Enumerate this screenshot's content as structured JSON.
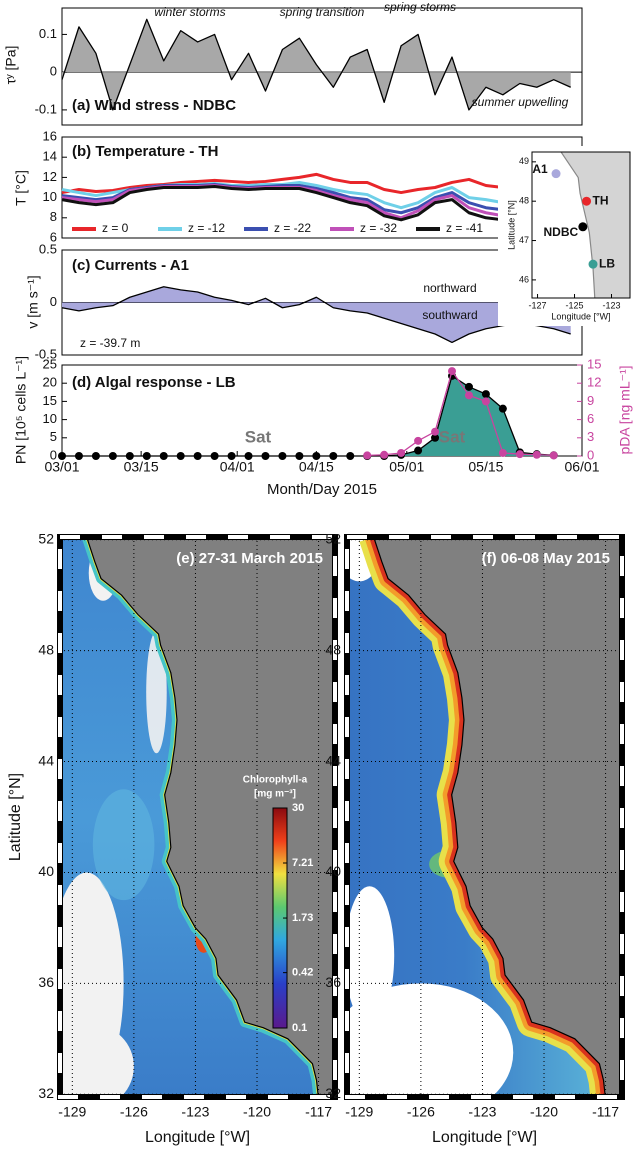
{
  "chart_data": [
    {
      "type": "area",
      "label": "(a) Wind stress - NDBC",
      "ylabel": "τʸ [Pa]",
      "annotations": [
        "winter storms",
        "spring transition",
        "spring storms",
        "summer upwelling"
      ],
      "x": [
        "2015-03-01",
        "2015-03-04",
        "2015-03-07",
        "2015-03-10",
        "2015-03-13",
        "2015-03-16",
        "2015-03-19",
        "2015-03-22",
        "2015-03-25",
        "2015-03-28",
        "2015-03-31",
        "2015-04-03",
        "2015-04-06",
        "2015-04-09",
        "2015-04-12",
        "2015-04-15",
        "2015-04-18",
        "2015-04-21",
        "2015-04-24",
        "2015-04-27",
        "2015-04-30",
        "2015-05-03",
        "2015-05-06",
        "2015-05-09",
        "2015-05-12",
        "2015-05-15",
        "2015-05-18",
        "2015-05-21",
        "2015-05-24",
        "2015-05-27",
        "2015-05-30"
      ],
      "xlim": [
        "2015-03-01",
        "2015-06-01"
      ],
      "ylim": [
        -0.14,
        0.17
      ],
      "yticks": [
        -0.1,
        0,
        0.1
      ],
      "series": [
        {
          "color": "#000000",
          "fill": "#a8a8a8",
          "values": [
            -0.02,
            0.12,
            0.05,
            -0.1,
            0.02,
            0.14,
            0.03,
            0.11,
            0.08,
            0.1,
            -0.02,
            0.05,
            -0.05,
            0.06,
            0.09,
            0.02,
            -0.04,
            0.04,
            0.06,
            -0.08,
            0.07,
            0.1,
            -0.06,
            0.04,
            -0.1,
            -0.04,
            -0.06,
            -0.03,
            -0.04,
            -0.02,
            -0.04
          ]
        }
      ]
    },
    {
      "type": "line",
      "label": "(b) Temperature - TH",
      "ylabel": "T [°C]",
      "legend": "bottom",
      "x": [
        "2015-03-01",
        "2015-03-04",
        "2015-03-07",
        "2015-03-10",
        "2015-03-13",
        "2015-03-16",
        "2015-03-19",
        "2015-03-22",
        "2015-03-25",
        "2015-03-28",
        "2015-03-31",
        "2015-04-03",
        "2015-04-06",
        "2015-04-09",
        "2015-04-12",
        "2015-04-15",
        "2015-04-18",
        "2015-04-21",
        "2015-04-24",
        "2015-04-27",
        "2015-04-30",
        "2015-05-03",
        "2015-05-06",
        "2015-05-09",
        "2015-05-12",
        "2015-05-15",
        "2015-05-18",
        "2015-05-21",
        "2015-05-24",
        "2015-05-27",
        "2015-05-30"
      ],
      "xlim": [
        "2015-03-01",
        "2015-06-01"
      ],
      "ylim": [
        6,
        16
      ],
      "yticks": [
        6,
        8,
        10,
        12,
        14,
        16
      ],
      "series": [
        {
          "name": "z = 0",
          "color": "#e8262a",
          "values": [
            10.5,
            10.8,
            10.6,
            10.7,
            11,
            11.2,
            11.3,
            11.5,
            11.6,
            11.7,
            11.6,
            11.5,
            11.6,
            11.8,
            12,
            12.3,
            11.8,
            11.5,
            11.5,
            10.8,
            10.5,
            10.8,
            11,
            11.5,
            11.8,
            11.2,
            11,
            11.5,
            11.3,
            10.8,
            10.8
          ]
        },
        {
          "name": "z = -12",
          "color": "#6fd0e8",
          "values": [
            10.8,
            10.5,
            10.2,
            10.5,
            10.8,
            11,
            11.2,
            11.3,
            11.3,
            11.4,
            11.2,
            11.2,
            11.3,
            11.3,
            11.5,
            11.2,
            10.8,
            10.5,
            10.3,
            9.5,
            9,
            9.5,
            10.5,
            11,
            10,
            9.8,
            9.5,
            9.2,
            9,
            9,
            9
          ]
        },
        {
          "name": "z = -22",
          "color": "#3b4fb0",
          "values": [
            10.2,
            10,
            9.8,
            10,
            10.8,
            11,
            11.2,
            11.2,
            11.2,
            11.3,
            11.1,
            11,
            11.1,
            11.2,
            11.2,
            10.9,
            10.5,
            10,
            9.8,
            8.8,
            8.5,
            9,
            10,
            10.5,
            9.5,
            9,
            8.8,
            8.5,
            8.3,
            8.3,
            8.3
          ]
        },
        {
          "name": "z = -32",
          "color": "#c050b8",
          "values": [
            10,
            9.8,
            9.6,
            9.8,
            10.7,
            10.9,
            11.1,
            11.1,
            11.1,
            11.2,
            11,
            10.9,
            11,
            11,
            11,
            10.7,
            10.2,
            9.8,
            9.5,
            8.5,
            8,
            8.7,
            9.8,
            10.2,
            9,
            8.5,
            8.2,
            8,
            8,
            7.8,
            7.8
          ]
        },
        {
          "name": "z = -41",
          "color": "#111111",
          "values": [
            9.8,
            9.5,
            9.3,
            9.5,
            10.5,
            10.8,
            11,
            11,
            11,
            11.1,
            10.9,
            10.8,
            10.9,
            10.9,
            10.9,
            10.5,
            10,
            9.5,
            9.2,
            8.2,
            7.8,
            8.3,
            9.5,
            9.8,
            8.5,
            8,
            7.8,
            7.6,
            7.5,
            7.5,
            7.5
          ]
        }
      ]
    },
    {
      "type": "area",
      "label": "(c) Currents - A1",
      "ylabel": "v [m s⁻¹]",
      "annotations": [
        "northward",
        "southward",
        "z = -39.7 m"
      ],
      "x": [
        "2015-03-01",
        "2015-03-04",
        "2015-03-07",
        "2015-03-10",
        "2015-03-13",
        "2015-03-16",
        "2015-03-19",
        "2015-03-22",
        "2015-03-25",
        "2015-03-28",
        "2015-03-31",
        "2015-04-03",
        "2015-04-06",
        "2015-04-09",
        "2015-04-12",
        "2015-04-15",
        "2015-04-18",
        "2015-04-21",
        "2015-04-24",
        "2015-04-27",
        "2015-04-30",
        "2015-05-03",
        "2015-05-06",
        "2015-05-09",
        "2015-05-12",
        "2015-05-15",
        "2015-05-18",
        "2015-05-21",
        "2015-05-24",
        "2015-05-27",
        "2015-05-30"
      ],
      "xlim": [
        "2015-03-01",
        "2015-06-01"
      ],
      "ylim": [
        -0.5,
        0.5
      ],
      "yticks": [
        -0.5,
        0,
        0.5
      ],
      "series": [
        {
          "color": "#000000",
          "fill": "#a9a8dc",
          "values": [
            -0.05,
            -0.08,
            -0.05,
            -0.03,
            0.05,
            0.1,
            0.15,
            0.12,
            0.1,
            0.05,
            0.02,
            -0.02,
            0.04,
            -0.05,
            -0.02,
            0.05,
            -0.05,
            -0.08,
            -0.1,
            -0.15,
            -0.2,
            -0.25,
            -0.3,
            -0.38,
            -0.3,
            -0.25,
            -0.22,
            -0.2,
            -0.22,
            -0.25,
            -0.3
          ]
        }
      ]
    },
    {
      "type": "line",
      "label": "(d) Algal response - LB",
      "ylabel": "PN [10⁵ cells L⁻¹]",
      "y2label": "pDA [ng mL⁻¹]",
      "xlabel": "Month/Day 2015",
      "annotations": [
        "Sat",
        "Sat"
      ],
      "x": [
        "2015-03-01",
        "2015-03-04",
        "2015-03-07",
        "2015-03-10",
        "2015-03-13",
        "2015-03-16",
        "2015-03-19",
        "2015-03-22",
        "2015-03-25",
        "2015-03-28",
        "2015-03-31",
        "2015-04-03",
        "2015-04-06",
        "2015-04-09",
        "2015-04-12",
        "2015-04-15",
        "2015-04-18",
        "2015-04-21",
        "2015-04-24",
        "2015-04-27",
        "2015-04-30",
        "2015-05-03",
        "2015-05-06",
        "2015-05-09",
        "2015-05-12",
        "2015-05-15",
        "2015-05-18",
        "2015-05-21",
        "2015-05-24",
        "2015-05-27",
        "2015-05-30"
      ],
      "xlim": [
        "2015-03-01",
        "2015-06-01"
      ],
      "xticks": [
        {
          "value": "2015-03-01",
          "label": "03/01"
        },
        {
          "value": "2015-03-15",
          "label": "03/15"
        },
        {
          "value": "2015-04-01",
          "label": "04/01"
        },
        {
          "value": "2015-04-15",
          "label": "04/15"
        },
        {
          "value": "2015-05-01",
          "label": "05/01"
        },
        {
          "value": "2015-05-15",
          "label": "05/15"
        },
        {
          "value": "2015-06-01",
          "label": "06/01"
        }
      ],
      "ylim": [
        0,
        25
      ],
      "yticks": [
        0,
        5,
        10,
        15,
        20,
        25
      ],
      "y2lim": [
        0,
        15
      ],
      "y2ticks": [
        0,
        3,
        6,
        9,
        12,
        15
      ],
      "y2color": "#c8449f",
      "series": [
        {
          "color": "#000000",
          "fill": "#3a9e94",
          "markers": true,
          "values": [
            0,
            0,
            0,
            0,
            0,
            0,
            0,
            0,
            0,
            0,
            0,
            0,
            0,
            0,
            0,
            0,
            0,
            0,
            0,
            0,
            0.3,
            1.5,
            5,
            22,
            19,
            17,
            13,
            1,
            0.5,
            0.2,
            null
          ]
        },
        {
          "color": "#c8449f",
          "axis": "y2",
          "markers": true,
          "values": [
            null,
            null,
            null,
            null,
            null,
            null,
            null,
            null,
            null,
            null,
            null,
            null,
            null,
            null,
            null,
            null,
            null,
            null,
            0.1,
            0.2,
            0.5,
            2.5,
            4,
            14,
            10,
            9,
            0.5,
            0.3,
            0.2,
            0.1,
            null
          ]
        }
      ]
    },
    {
      "type": "map",
      "xlabel": "Longitude [°W]",
      "ylabel": "Latitude [°N]",
      "xlim": [
        -127.3,
        -122.0
      ],
      "ylim": [
        45.54,
        49.25
      ],
      "xticks": [
        -127,
        -125,
        -123
      ],
      "yticks": [
        46,
        47,
        48,
        49
      ],
      "labels": [
        "A1",
        "TH",
        "NDBC",
        "LB"
      ]
    },
    {
      "type": "map",
      "title": "(e) 27-31 March 2015",
      "xlabel": "Longitude [°W]",
      "ylabel": "Latitude [°N]",
      "xlim": [
        -129.6,
        -116.2
      ],
      "ylim": [
        31.9,
        52.1
      ],
      "xticks": [
        -129,
        -126,
        -123,
        -120,
        -117
      ],
      "yticks": [
        32,
        36,
        40,
        44,
        48,
        52
      ],
      "colorbar": {
        "title": "Chlorophyll-a",
        "unit": "[mg m⁻³]",
        "lim": [
          0.1,
          30
        ],
        "log": true,
        "ticks": [
          0.1,
          0.42,
          1.73,
          7.21,
          30
        ]
      }
    },
    {
      "type": "map",
      "title": "(f) 06-08 May 2015",
      "xlabel": "Longitude [°W]",
      "xlim": [
        -129.6,
        -116.2
      ],
      "ylim": [
        31.9,
        52.1
      ],
      "xticks": [
        -129,
        -126,
        -123,
        -120,
        -117
      ],
      "yticks": [
        32,
        36,
        40,
        44,
        48,
        52
      ]
    }
  ]
}
